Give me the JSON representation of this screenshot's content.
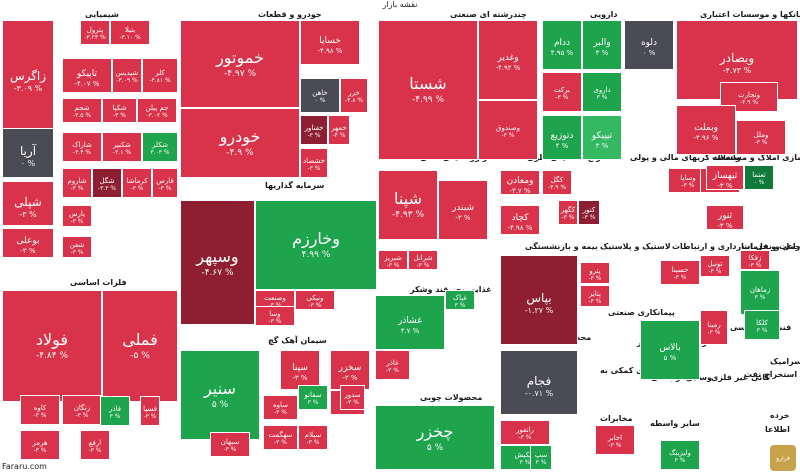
{
  "page_title": "نقشه بازار",
  "watermark": "Fararu.com",
  "logo_text": "فرارو",
  "colors": {
    "deep_red": "#c8213a",
    "red": "#d9334b",
    "dark_red": "#8e1f32",
    "maroon": "#6e1a2c",
    "gray": "#4b4b55",
    "green": "#1ea44d",
    "light_green": "#34b862",
    "dark_green": "#0f7a3a"
  },
  "chart_data": {
    "type": "treemap",
    "title": "نقشه بازار",
    "value_unit": "%",
    "sectors": [
      {
        "name": "شیمیایی"
      },
      {
        "name": "خودرو و قطعات"
      },
      {
        "name": "چندرشته ای صنعتی"
      },
      {
        "name": "دارویی"
      },
      {
        "name": "بانکها و موسسات اعتباری"
      },
      {
        "name": "سرمایه گذاریها"
      },
      {
        "name": "فرآورده های نفتی"
      },
      {
        "name": "استخراج کانه های فلزی"
      },
      {
        "name": "واسطه گریهای مالی و پولی"
      },
      {
        "name": "انبوه سازی املاک و مستغلات"
      },
      {
        "name": "فلزات اساسی"
      },
      {
        "name": "سیمان آهک گچ"
      },
      {
        "name": "غذایی بجز قند وشکر"
      },
      {
        "name": "بیمه و بازنشستگی"
      },
      {
        "name": "لاستیک و پلاستیک"
      },
      {
        "name": "حمل و نقل انبارداری و ارتباطات"
      },
      {
        "name": "زراعت و خدمات"
      },
      {
        "name": "محصولات فلزی"
      },
      {
        "name": "پیمانکاری صنعتی"
      },
      {
        "name": "عرضه برق،گاز،بخار"
      },
      {
        "name": "فنی و مهندسی"
      },
      {
        "name": "کاشی و سرامیک"
      },
      {
        "name": "استخراج نفت"
      },
      {
        "name": "محصولات چوبی"
      },
      {
        "name": "رایانه"
      },
      {
        "name": "مخابرات"
      },
      {
        "name": "فعالیتهای کمکی به"
      },
      {
        "name": "وسایل ارتباطی"
      },
      {
        "name": "کانی غیر فلزی"
      },
      {
        "name": "سایر واسطه"
      },
      {
        "name": "اطلاعا"
      },
      {
        "name": "خرده"
      }
    ],
    "tiles": [
      {
        "name": "زاگرس",
        "change": "-۳.۰۹ %",
        "color": "red"
      },
      {
        "name": "آریا",
        "change": "۰ %",
        "color": "gray"
      },
      {
        "name": "شپلی",
        "change": "-۳ %",
        "color": "red"
      },
      {
        "name": "بوعلی",
        "change": "-۳ %",
        "color": "red"
      },
      {
        "name": "پترول",
        "change": "-۳.۲۳ %",
        "color": "red"
      },
      {
        "name": "بتیلا",
        "change": "-۳.۱۰ %",
        "color": "red"
      },
      {
        "name": "تاپیکو",
        "change": "-۴.۰۷ %",
        "color": "red"
      },
      {
        "name": "شپدیس",
        "change": "-۳.۰۹ %",
        "color": "red"
      },
      {
        "name": "کلر",
        "change": "-۴.۸۱ %",
        "color": "red"
      },
      {
        "name": "شجم",
        "change": "-۳.۵ %",
        "color": "red"
      },
      {
        "name": "شکپا",
        "change": "-۳ %",
        "color": "red"
      },
      {
        "name": "جم پیلن",
        "change": "-۳.۰۲ %",
        "color": "red"
      },
      {
        "name": "شاراک",
        "change": "-۳.۴ %",
        "color": "red"
      },
      {
        "name": "شکبیر",
        "change": "-۳.۱ %",
        "color": "red"
      },
      {
        "name": "شکلر",
        "change": "۳.۰۳ %",
        "color": "green"
      },
      {
        "name": "شاروم",
        "change": "-۳ %",
        "color": "red"
      },
      {
        "name": "شگل",
        "change": "-۳.۳ %",
        "color": "dark_red"
      },
      {
        "name": "کرماشا",
        "change": "-۳ %",
        "color": "red"
      },
      {
        "name": "فارس",
        "change": "-۳ %",
        "color": "red"
      },
      {
        "name": "پارس",
        "change": "-۳ %",
        "color": "red"
      },
      {
        "name": "شفن",
        "change": "-۳ %",
        "color": "red"
      },
      {
        "name": "خموتور",
        "change": "-۴.۹۷ %",
        "color": "red"
      },
      {
        "name": "خودرو",
        "change": "-۴.۹ %",
        "color": "red"
      },
      {
        "name": "خساپا",
        "change": "-۴.۹۸ %",
        "color": "red"
      },
      {
        "name": "خاهن",
        "change": "۰ %",
        "color": "gray"
      },
      {
        "name": "خزر",
        "change": "-۴.۸ %",
        "color": "red"
      },
      {
        "name": "خفناور",
        "change": "-۳ %",
        "color": "dark_red"
      },
      {
        "name": "خمهر",
        "change": "-۴ %",
        "color": "red"
      },
      {
        "name": "خشصاد",
        "change": "-۳ %",
        "color": "red"
      },
      {
        "name": "شستا",
        "change": "-۴.۹۹ %",
        "color": "red"
      },
      {
        "name": "وغدیر",
        "change": "-۴.۹۲ %",
        "color": "red"
      },
      {
        "name": "وصندوق",
        "change": "-۳ %",
        "color": "red"
      },
      {
        "name": "ددام",
        "change": "۴.۹۵ %",
        "color": "green"
      },
      {
        "name": "والبر",
        "change": "۳ %",
        "color": "green"
      },
      {
        "name": "دلوه",
        "change": "۰ %",
        "color": "gray"
      },
      {
        "name": "برکت",
        "change": "-۳ %",
        "color": "red"
      },
      {
        "name": "داروی",
        "change": "۳ %",
        "color": "green"
      },
      {
        "name": "دتوزیع",
        "change": "۴ %",
        "color": "green"
      },
      {
        "name": "تیپیکو",
        "change": "۳ %",
        "color": "light_green"
      },
      {
        "name": "وبصادر",
        "change": "-۴.۷۳ %",
        "color": "red"
      },
      {
        "name": "وتجارت",
        "change": "-۴.۹ %",
        "color": "red"
      },
      {
        "name": "وبملت",
        "change": "-۴.۹۶ %",
        "color": "red"
      },
      {
        "name": "وملل",
        "change": "-۳ %",
        "color": "red"
      },
      {
        "name": "وسپهر",
        "change": "-۴.۶۷ %",
        "color": "dark_red"
      },
      {
        "name": "وخارزم",
        "change": "۴.۹۹ %",
        "color": "green"
      },
      {
        "name": "وصنعت",
        "change": "-۳ %",
        "color": "red"
      },
      {
        "name": "وسا",
        "change": "-۳ %",
        "color": "red"
      },
      {
        "name": "ونیکی",
        "change": "-۳ %",
        "color": "red"
      },
      {
        "name": "شپنا",
        "change": "-۴.۹۳ %",
        "color": "red"
      },
      {
        "name": "شبندر",
        "change": "-۳ %",
        "color": "red"
      },
      {
        "name": "شبریز",
        "change": "-۳ %",
        "color": "red"
      },
      {
        "name": "شرانل",
        "change": "-۳ %",
        "color": "red"
      },
      {
        "name": "کگل",
        "change": "-۳.۹ %",
        "color": "red"
      },
      {
        "name": "ومعادن",
        "change": "-۳.۷ %",
        "color": "red"
      },
      {
        "name": "کچاد",
        "change": "-۴.۹۸ %",
        "color": "red"
      },
      {
        "name": "کگهر",
        "change": "-۳ %",
        "color": "red"
      },
      {
        "name": "کنور",
        "change": "-۳ %",
        "color": "dark_red"
      },
      {
        "name": "وساپا",
        "change": "-۳ %",
        "color": "red"
      },
      {
        "name": "وسنم",
        "change": "-۳ %",
        "color": "red"
      },
      {
        "name": "ثبهساز",
        "change": "-۳ %",
        "color": "red"
      },
      {
        "name": "ثعتما",
        "change": "۰ %",
        "color": "dark_green"
      },
      {
        "name": "ثنور",
        "change": "-۳ %",
        "color": "red"
      },
      {
        "name": "فولاد",
        "change": "-۴.۸۴ %",
        "color": "red"
      },
      {
        "name": "فملی",
        "change": "-۵ %",
        "color": "red"
      },
      {
        "name": "زنگان",
        "change": "-۳ %",
        "color": "red"
      },
      {
        "name": "کاوه",
        "change": "-۳ %",
        "color": "red"
      },
      {
        "name": "هرمز",
        "change": "-۳ %",
        "color": "red"
      },
      {
        "name": "فاذر",
        "change": "۳ %",
        "color": "green"
      },
      {
        "name": "فسپا",
        "change": "-۳ %",
        "color": "red"
      },
      {
        "name": "ارفع",
        "change": "-۳ %",
        "color": "red"
      },
      {
        "name": "سنیر",
        "change": "۵ %",
        "color": "green"
      },
      {
        "name": "سپنا",
        "change": "-۳ %",
        "color": "red"
      },
      {
        "name": "سخزر",
        "change": "-۳ %",
        "color": "red"
      },
      {
        "name": "ساوه",
        "change": "-۳ %",
        "color": "red"
      },
      {
        "name": "سفانو",
        "change": "۳ %",
        "color": "green"
      },
      {
        "name": "سفار",
        "change": "-۳ %",
        "color": "red"
      },
      {
        "name": "سهگمت",
        "change": "-۳ %",
        "color": "red"
      },
      {
        "name": "سیلام",
        "change": "-۳ %",
        "color": "red"
      },
      {
        "name": "سبهان",
        "change": "-۳ %",
        "color": "red"
      },
      {
        "name": "سدور",
        "change": "-۳ %",
        "color": "red"
      },
      {
        "name": "غشاذر",
        "change": "۴.۷ %",
        "color": "green"
      },
      {
        "name": "غپاک",
        "change": "۳ %",
        "color": "green"
      },
      {
        "name": "غاذر",
        "change": "-۳ %",
        "color": "red"
      },
      {
        "name": "بپاس",
        "change": "-۱.۲۷ %",
        "color": "dark_red"
      },
      {
        "name": "پترو",
        "change": "-۳ %",
        "color": "red"
      },
      {
        "name": "پتایر",
        "change": "-۳ %",
        "color": "red"
      },
      {
        "name": "حسینا",
        "change": "-۳ %",
        "color": "red"
      },
      {
        "name": "تونیل",
        "change": "-۳ %",
        "color": "red"
      },
      {
        "name": "زفکا",
        "change": "-۳ %",
        "color": "red"
      },
      {
        "name": "زماهان",
        "change": "۳ %",
        "color": "green"
      },
      {
        "name": "فجام",
        "change": "-۰.۷۱ %",
        "color": "gray"
      },
      {
        "name": "رمینا",
        "change": "-۳ %",
        "color": "red"
      },
      {
        "name": "بالاس",
        "change": "۵ %",
        "color": "green"
      },
      {
        "name": "کلکا",
        "change": "۳ %",
        "color": "green"
      },
      {
        "name": "چخزر",
        "change": "۵ %",
        "color": "green"
      },
      {
        "name": "رانفور",
        "change": "-۳ %",
        "color": "red"
      },
      {
        "name": "تاپکیش",
        "change": "۳ %",
        "color": "green"
      },
      {
        "name": "سپ",
        "change": "۳ %",
        "color": "green"
      },
      {
        "name": "اخابر",
        "change": "-۳ %",
        "color": "red"
      },
      {
        "name": "ولیزینگ",
        "change": "۳ %",
        "color": "green"
      }
    ]
  }
}
